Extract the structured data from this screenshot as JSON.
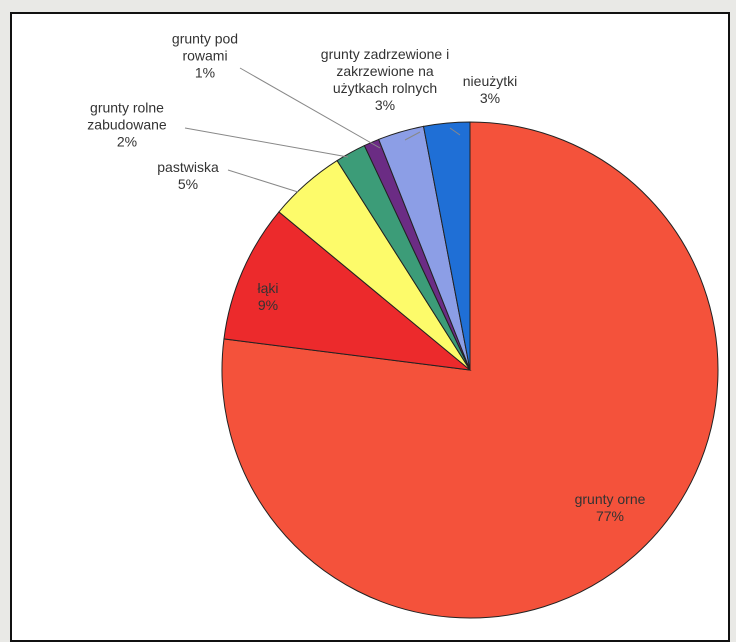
{
  "chart_data": {
    "type": "pie",
    "categories": [
      "grunty orne",
      "łąki",
      "pastwiska",
      "grunty rolne zabudowane",
      "grunty pod rowami",
      "grunty zadrzewione i zakrzewione na użytkach rolnych",
      "nieużytki"
    ],
    "values": [
      77,
      9,
      5,
      2,
      1,
      3,
      3
    ],
    "value_labels": [
      "77%",
      "9%",
      "5%",
      "2%",
      "1%",
      "3%",
      "3%"
    ],
    "colors": [
      "#f4523b",
      "#ec2a2c",
      "#fdfb6a",
      "#3c9c78",
      "#6b2c84",
      "#8c9ee6",
      "#1f6fd6"
    ]
  }
}
